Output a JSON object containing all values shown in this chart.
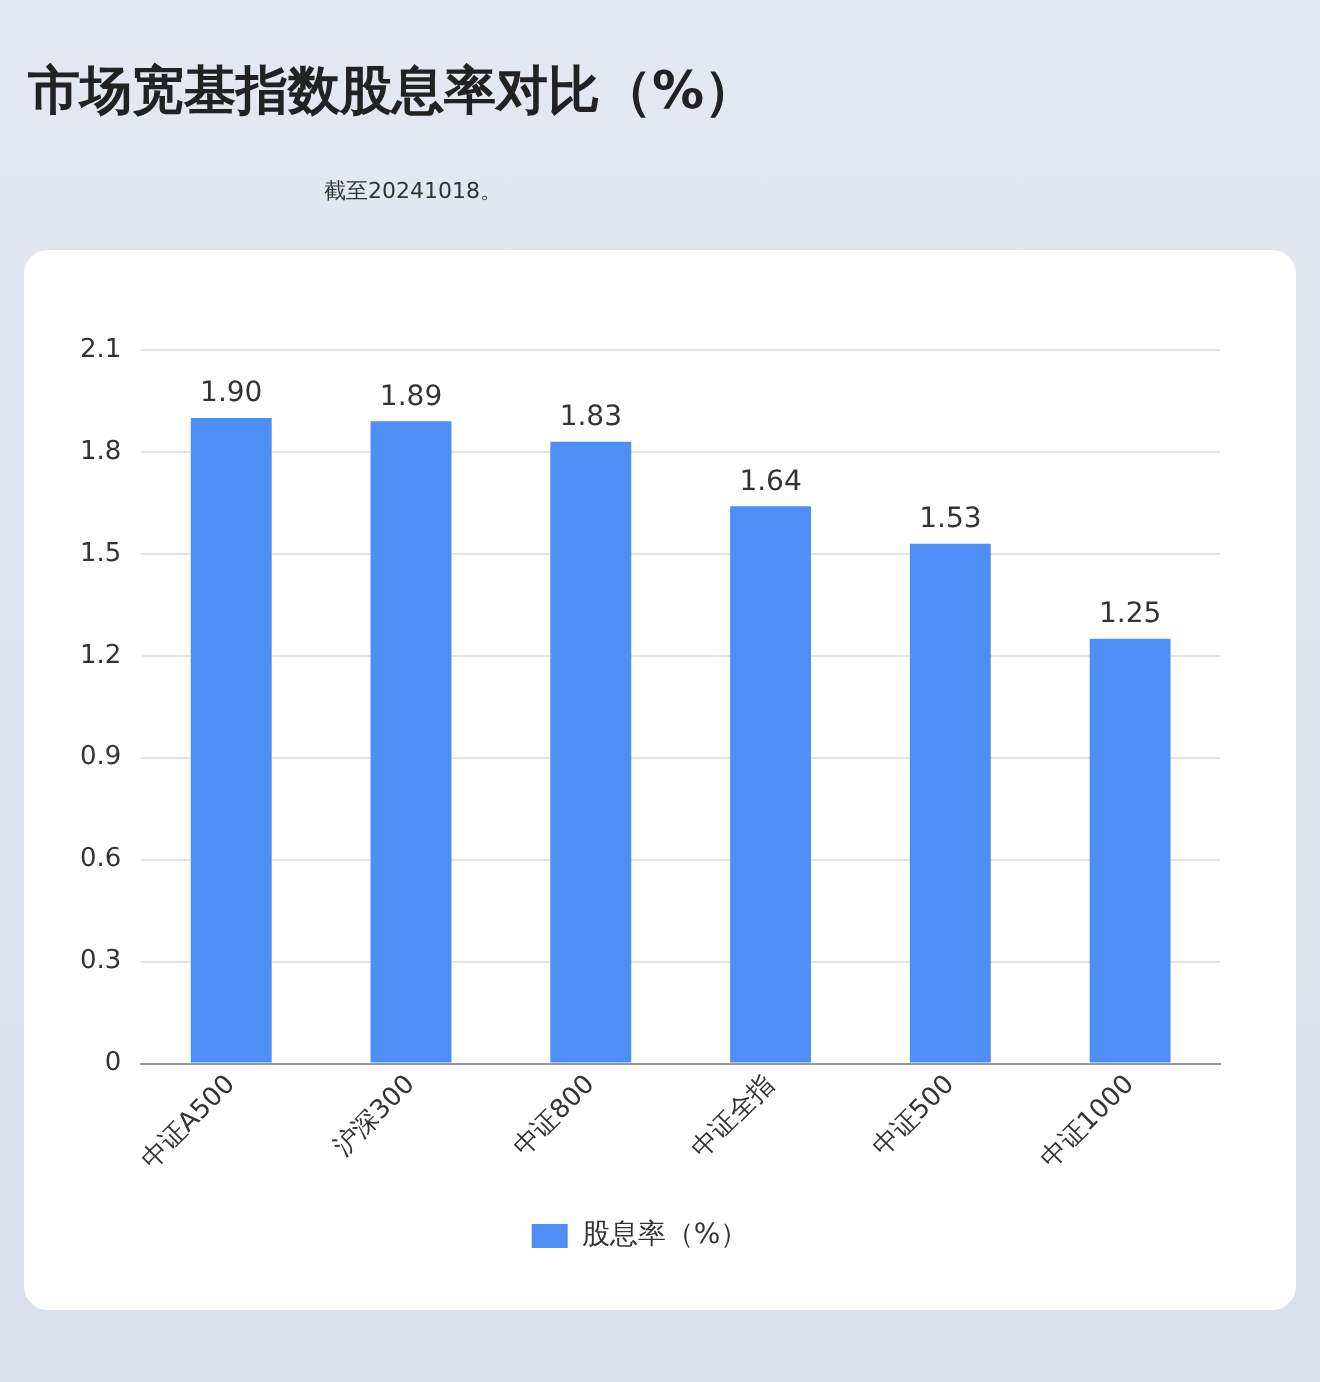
{
  "chart_data": {
    "type": "bar",
    "title": "市场宽基指数股息率对比（%）",
    "annotations": [
      "截至20241018。"
    ],
    "categories": [
      "中证A500",
      "沪深300",
      "中证800",
      "中证全指",
      "中证500",
      "中证1000"
    ],
    "series": [
      {
        "name": "股息率（%）",
        "color": "#4e8ef7",
        "values": [
          1.9,
          1.89,
          1.83,
          1.64,
          1.53,
          1.25
        ],
        "value_labels": [
          "1.90",
          "1.89",
          "1.83",
          "1.64",
          "1.53",
          "1.25"
        ]
      }
    ],
    "ylim": [
      0,
      2.1
    ],
    "yticks": [
      0,
      0.3,
      0.6,
      0.9,
      1.2,
      1.5,
      1.8,
      2.1
    ],
    "grid": "y",
    "legend": "bottom"
  }
}
